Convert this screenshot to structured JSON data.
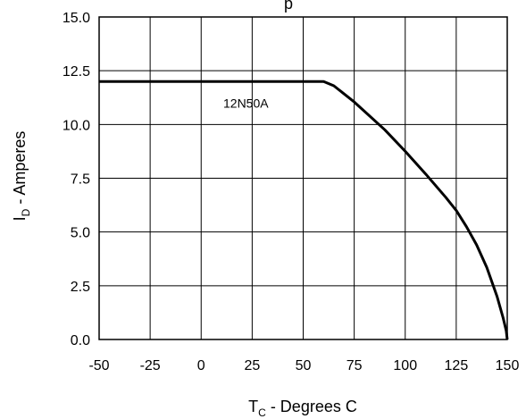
{
  "chart_data": {
    "type": "line",
    "title": "",
    "title_fragment": "p",
    "xlabel": {
      "main": "T",
      "sub": "C",
      "rest": " - Degrees C"
    },
    "ylabel": {
      "main": "I",
      "sub": "D",
      "rest": " - Amperes"
    },
    "xlim": [
      -50,
      150
    ],
    "ylim": [
      0,
      15
    ],
    "x_ticks": [
      -50,
      -25,
      0,
      25,
      50,
      75,
      100,
      125,
      150
    ],
    "y_ticks": [
      0.0,
      2.5,
      5.0,
      7.5,
      10.0,
      12.5,
      15.0
    ],
    "x_tick_labels": [
      "-50",
      "-25",
      "0",
      "25",
      "50",
      "75",
      "100",
      "125",
      "150"
    ],
    "y_tick_labels": [
      "0.0",
      "2.5",
      "5.0",
      "7.5",
      "10.0",
      "12.5",
      "15.0"
    ],
    "grid": true,
    "series": [
      {
        "name": "12N50A",
        "x": [
          -50,
          60,
          65,
          75,
          90,
          100,
          110,
          120,
          125,
          130,
          135,
          140,
          145,
          148,
          149.5,
          150
        ],
        "y": [
          12,
          12,
          11.8,
          11.05,
          9.75,
          8.75,
          7.7,
          6.6,
          6.0,
          5.25,
          4.4,
          3.35,
          2.0,
          1.0,
          0.4,
          0
        ]
      }
    ],
    "annotations": [
      {
        "text": "12N50A",
        "x": 60,
        "y": 11.0
      }
    ],
    "colors": {
      "line": "#000000",
      "grid": "#000000",
      "background": "#ffffff"
    }
  }
}
